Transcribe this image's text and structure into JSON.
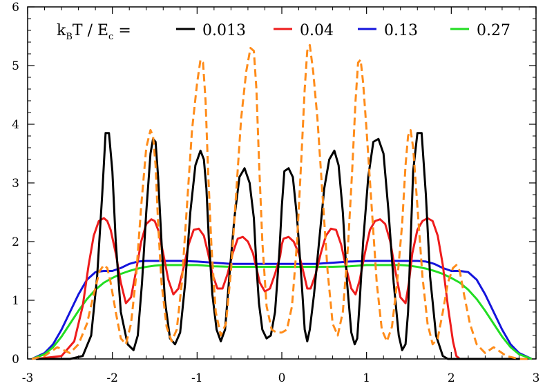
{
  "chart_data": {
    "type": "line",
    "xlim": [
      -3,
      3
    ],
    "ylim": [
      0,
      6
    ],
    "x_ticks": [
      -3,
      -2,
      -1,
      0,
      1,
      2,
      3
    ],
    "y_ticks": [
      0,
      1,
      2,
      3,
      4,
      5,
      6
    ],
    "x_tick_labels": [
      "-3",
      "-2",
      "-1",
      "0",
      "1",
      "2",
      "3"
    ],
    "y_tick_labels": [
      "0",
      "1",
      "2",
      "3",
      "4",
      "5",
      "6"
    ],
    "grid": false,
    "legend": {
      "position": "top",
      "title_main": "k",
      "title_sub1": "B",
      "title_mid": "T / E",
      "title_sub2": "c",
      "title_end": " ="
    },
    "series": [
      {
        "name": "0.013",
        "color": "#000000",
        "style": "solid",
        "x": [
          -2.9,
          -2.5,
          -2.35,
          -2.25,
          -2.18,
          -2.12,
          -2.08,
          -2.04,
          -2.0,
          -1.96,
          -1.9,
          -1.82,
          -1.75,
          -1.7,
          -1.65,
          -1.6,
          -1.55,
          -1.52,
          -1.49,
          -1.46,
          -1.42,
          -1.38,
          -1.32,
          -1.26,
          -1.2,
          -1.14,
          -1.08,
          -1.02,
          -0.96,
          -0.92,
          -0.89,
          -0.86,
          -0.82,
          -0.77,
          -0.72,
          -0.67,
          -0.62,
          -0.56,
          -0.5,
          -0.44,
          -0.38,
          -0.33,
          -0.3,
          -0.27,
          -0.23,
          -0.18,
          -0.13,
          -0.08,
          -0.03,
          0.0,
          0.03,
          0.08,
          0.13,
          0.18,
          0.23,
          0.27,
          0.3,
          0.33,
          0.38,
          0.44,
          0.5,
          0.56,
          0.62,
          0.67,
          0.72,
          0.77,
          0.82,
          0.86,
          0.89,
          0.92,
          0.96,
          1.02,
          1.08,
          1.14,
          1.2,
          1.26,
          1.32,
          1.38,
          1.42,
          1.46,
          1.49,
          1.52,
          1.55,
          1.6,
          1.65,
          1.7,
          1.75,
          1.82,
          1.9,
          1.96,
          2.0,
          2.04,
          2.08,
          2.12,
          2.18,
          2.25,
          2.35,
          2.5,
          2.9
        ],
        "y": [
          0.0,
          0.0,
          0.05,
          0.4,
          1.4,
          2.8,
          3.85,
          3.85,
          3.2,
          2.0,
          0.8,
          0.25,
          0.15,
          0.4,
          1.3,
          2.5,
          3.5,
          3.75,
          3.7,
          3.1,
          2.0,
          1.0,
          0.35,
          0.25,
          0.45,
          1.3,
          2.5,
          3.3,
          3.55,
          3.4,
          2.9,
          2.0,
          1.1,
          0.5,
          0.3,
          0.5,
          1.4,
          2.4,
          3.1,
          3.25,
          3.0,
          2.4,
          1.6,
          0.95,
          0.5,
          0.35,
          0.4,
          0.8,
          1.8,
          2.6,
          3.2,
          3.25,
          3.1,
          2.4,
          1.4,
          0.5,
          0.3,
          0.5,
          1.1,
          2.0,
          2.9,
          3.4,
          3.55,
          3.3,
          2.5,
          1.3,
          0.45,
          0.25,
          0.35,
          1.0,
          2.0,
          3.1,
          3.7,
          3.75,
          3.5,
          2.5,
          1.3,
          0.4,
          0.15,
          0.25,
          0.8,
          2.0,
          3.2,
          3.85,
          3.85,
          2.8,
          1.4,
          0.4,
          0.05,
          0.0,
          0.0,
          0.0,
          0.0,
          0.0,
          0.0,
          0.0,
          0.0,
          0.0,
          0.0
        ]
      },
      {
        "name": "0.04",
        "color": "#ee1c1c",
        "style": "solid",
        "x": [
          -2.9,
          -2.6,
          -2.45,
          -2.35,
          -2.28,
          -2.22,
          -2.16,
          -2.1,
          -2.06,
          -2.02,
          -1.96,
          -1.9,
          -1.84,
          -1.78,
          -1.72,
          -1.66,
          -1.6,
          -1.54,
          -1.5,
          -1.46,
          -1.4,
          -1.34,
          -1.28,
          -1.22,
          -1.16,
          -1.1,
          -1.04,
          -0.98,
          -0.92,
          -0.87,
          -0.82,
          -0.76,
          -0.7,
          -0.64,
          -0.58,
          -0.52,
          -0.46,
          -0.4,
          -0.34,
          -0.3,
          -0.26,
          -0.2,
          -0.14,
          -0.08,
          -0.02,
          0.0,
          0.02,
          0.08,
          0.14,
          0.2,
          0.26,
          0.3,
          0.34,
          0.4,
          0.46,
          0.52,
          0.58,
          0.64,
          0.7,
          0.76,
          0.82,
          0.87,
          0.92,
          0.98,
          1.04,
          1.1,
          1.16,
          1.22,
          1.28,
          1.34,
          1.4,
          1.46,
          1.5,
          1.54,
          1.6,
          1.66,
          1.72,
          1.78,
          1.84,
          1.9,
          1.96,
          2.02,
          2.06,
          2.1,
          2.16,
          2.22,
          2.28,
          2.35,
          2.45,
          2.6,
          2.9
        ],
        "y": [
          0.0,
          0.05,
          0.3,
          0.9,
          1.6,
          2.1,
          2.35,
          2.4,
          2.35,
          2.2,
          1.8,
          1.3,
          0.95,
          1.05,
          1.5,
          2.0,
          2.3,
          2.38,
          2.35,
          2.2,
          1.8,
          1.35,
          1.1,
          1.2,
          1.55,
          1.95,
          2.2,
          2.22,
          2.1,
          1.8,
          1.45,
          1.2,
          1.2,
          1.45,
          1.8,
          2.05,
          2.08,
          2.0,
          1.8,
          1.55,
          1.3,
          1.15,
          1.2,
          1.45,
          1.75,
          1.95,
          2.05,
          2.08,
          2.0,
          1.8,
          1.45,
          1.2,
          1.2,
          1.45,
          1.8,
          2.1,
          2.22,
          2.2,
          1.95,
          1.55,
          1.2,
          1.1,
          1.35,
          1.8,
          2.2,
          2.35,
          2.38,
          2.3,
          2.0,
          1.5,
          1.05,
          0.95,
          1.3,
          1.8,
          2.2,
          2.35,
          2.4,
          2.35,
          2.1,
          1.6,
          0.9,
          0.3,
          0.05,
          0.0,
          0.0,
          0.0,
          0.0,
          0.0,
          0.0,
          0.0,
          0.0
        ]
      },
      {
        "name": "0.13",
        "color": "#1414dc",
        "style": "solid",
        "x": [
          -2.95,
          -2.8,
          -2.7,
          -2.6,
          -2.5,
          -2.4,
          -2.3,
          -2.2,
          -2.1,
          -2.0,
          -1.9,
          -1.8,
          -1.7,
          -1.6,
          -1.5,
          -1.4,
          -1.2,
          -1.0,
          -0.8,
          -0.6,
          -0.4,
          -0.2,
          0.0,
          0.2,
          0.4,
          0.6,
          0.8,
          1.0,
          1.2,
          1.4,
          1.5,
          1.6,
          1.7,
          1.8,
          1.9,
          2.0,
          2.1,
          2.2,
          2.3,
          2.4,
          2.5,
          2.6,
          2.7,
          2.8,
          2.95
        ],
        "y": [
          0.0,
          0.1,
          0.25,
          0.5,
          0.8,
          1.1,
          1.35,
          1.48,
          1.5,
          1.5,
          1.55,
          1.62,
          1.66,
          1.67,
          1.67,
          1.67,
          1.67,
          1.66,
          1.64,
          1.62,
          1.62,
          1.62,
          1.62,
          1.62,
          1.62,
          1.64,
          1.66,
          1.67,
          1.67,
          1.67,
          1.67,
          1.67,
          1.66,
          1.62,
          1.55,
          1.5,
          1.5,
          1.48,
          1.35,
          1.1,
          0.8,
          0.5,
          0.25,
          0.1,
          0.0
        ]
      },
      {
        "name": "0.27",
        "color": "#22dd22",
        "style": "solid",
        "x": [
          -2.95,
          -2.8,
          -2.7,
          -2.6,
          -2.5,
          -2.4,
          -2.3,
          -2.2,
          -2.1,
          -2.0,
          -1.9,
          -1.8,
          -1.7,
          -1.6,
          -1.5,
          -1.4,
          -1.2,
          -1.0,
          -0.8,
          -0.6,
          -0.4,
          -0.2,
          0.0,
          0.2,
          0.4,
          0.6,
          0.8,
          1.0,
          1.2,
          1.4,
          1.5,
          1.6,
          1.7,
          1.8,
          1.9,
          2.0,
          2.1,
          2.2,
          2.3,
          2.4,
          2.5,
          2.6,
          2.7,
          2.8,
          2.95
        ],
        "y": [
          0.0,
          0.08,
          0.2,
          0.38,
          0.6,
          0.82,
          1.02,
          1.18,
          1.3,
          1.38,
          1.45,
          1.5,
          1.54,
          1.57,
          1.59,
          1.6,
          1.6,
          1.6,
          1.58,
          1.57,
          1.57,
          1.57,
          1.57,
          1.57,
          1.57,
          1.57,
          1.58,
          1.6,
          1.6,
          1.6,
          1.59,
          1.57,
          1.54,
          1.5,
          1.45,
          1.38,
          1.3,
          1.18,
          1.02,
          0.82,
          0.6,
          0.38,
          0.2,
          0.08,
          0.0
        ]
      },
      {
        "name": "",
        "color": "#ff8c1a",
        "style": "dashed",
        "x": [
          -2.95,
          -2.8,
          -2.65,
          -2.5,
          -2.4,
          -2.3,
          -2.22,
          -2.15,
          -2.1,
          -2.06,
          -2.02,
          -1.96,
          -1.9,
          -1.84,
          -1.78,
          -1.72,
          -1.66,
          -1.6,
          -1.55,
          -1.52,
          -1.49,
          -1.46,
          -1.42,
          -1.36,
          -1.3,
          -1.24,
          -1.18,
          -1.12,
          -1.06,
          -1.0,
          -0.96,
          -0.93,
          -0.9,
          -0.87,
          -0.83,
          -0.78,
          -0.72,
          -0.66,
          -0.6,
          -0.54,
          -0.48,
          -0.42,
          -0.37,
          -0.33,
          -0.3,
          -0.27,
          -0.23,
          -0.18,
          -0.12,
          -0.06,
          0.0,
          0.06,
          0.12,
          0.18,
          0.23,
          0.27,
          0.3,
          0.33,
          0.37,
          0.42,
          0.48,
          0.54,
          0.6,
          0.66,
          0.72,
          0.78,
          0.83,
          0.87,
          0.9,
          0.93,
          0.96,
          1.0,
          1.06,
          1.12,
          1.18,
          1.24,
          1.3,
          1.36,
          1.42,
          1.46,
          1.49,
          1.52,
          1.55,
          1.6,
          1.66,
          1.72,
          1.78,
          1.84,
          1.9,
          1.96,
          2.02,
          2.06,
          2.1,
          2.15,
          2.22,
          2.3,
          2.4,
          2.5,
          2.65,
          2.8,
          2.95
        ],
        "y": [
          0.0,
          0.05,
          0.2,
          0.1,
          0.25,
          0.6,
          1.1,
          1.5,
          1.6,
          1.55,
          1.3,
          0.8,
          0.35,
          0.25,
          0.6,
          1.4,
          2.6,
          3.6,
          3.9,
          3.8,
          3.3,
          2.3,
          1.3,
          0.55,
          0.3,
          0.5,
          1.3,
          2.6,
          3.9,
          4.7,
          5.1,
          5.05,
          4.4,
          3.2,
          1.9,
          0.8,
          0.4,
          0.6,
          1.5,
          2.8,
          4.1,
          4.9,
          5.3,
          5.25,
          4.6,
          3.4,
          2.0,
          0.9,
          0.5,
          0.45,
          0.45,
          0.5,
          0.9,
          2.0,
          3.4,
          4.6,
          5.25,
          5.35,
          4.9,
          4.1,
          2.8,
          1.5,
          0.6,
          0.4,
          0.8,
          1.9,
          3.2,
          4.4,
          5.05,
          5.1,
          4.7,
          3.9,
          2.6,
          1.3,
          0.5,
          0.3,
          0.55,
          1.3,
          2.3,
          3.3,
          3.8,
          3.9,
          3.6,
          2.6,
          1.4,
          0.6,
          0.25,
          0.35,
          0.8,
          1.3,
          1.55,
          1.6,
          1.5,
          1.1,
          0.6,
          0.25,
          0.1,
          0.2,
          0.05,
          0.0,
          0.0
        ]
      }
    ]
  }
}
